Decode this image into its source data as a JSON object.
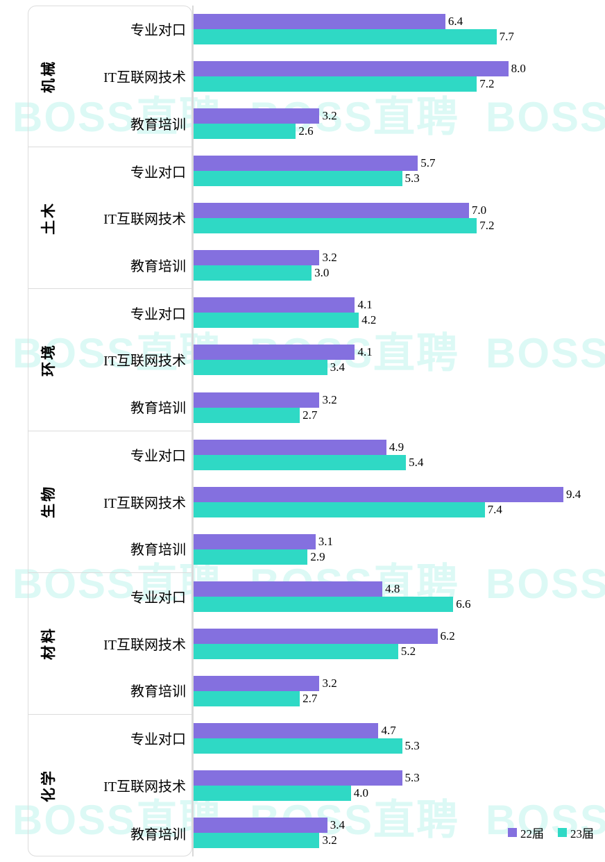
{
  "watermark": {
    "text": "BOSS直聘"
  },
  "legend": [
    {
      "label": "22届",
      "color": "#8470DF"
    },
    {
      "label": "23届",
      "color": "#2FD9C5"
    }
  ],
  "chart_data": {
    "type": "bar",
    "orientation": "horizontal",
    "title": "",
    "xlabel": "",
    "ylabel": "",
    "value_axis_range": [
      0,
      10
    ],
    "grid": false,
    "legend_position": "bottom-right",
    "groups": [
      "机械",
      "土木",
      "环境",
      "生物",
      "材料",
      "化学"
    ],
    "categories": [
      "专业对口",
      "IT互联网技术",
      "教育培训"
    ],
    "series": [
      {
        "name": "22届",
        "color": "#8470DF",
        "values": [
          [
            6.4,
            8.0,
            3.2
          ],
          [
            5.7,
            7.0,
            3.2
          ],
          [
            4.1,
            4.1,
            3.2
          ],
          [
            4.9,
            9.4,
            3.1
          ],
          [
            4.8,
            6.2,
            3.2
          ],
          [
            4.7,
            5.3,
            3.4
          ]
        ]
      },
      {
        "name": "23届",
        "color": "#2FD9C5",
        "values": [
          [
            7.7,
            7.2,
            2.6
          ],
          [
            5.3,
            7.2,
            3.0
          ],
          [
            4.2,
            3.4,
            2.7
          ],
          [
            5.4,
            7.4,
            2.9
          ],
          [
            6.6,
            5.2,
            2.7
          ],
          [
            5.3,
            4.0,
            3.2
          ]
        ]
      }
    ]
  }
}
